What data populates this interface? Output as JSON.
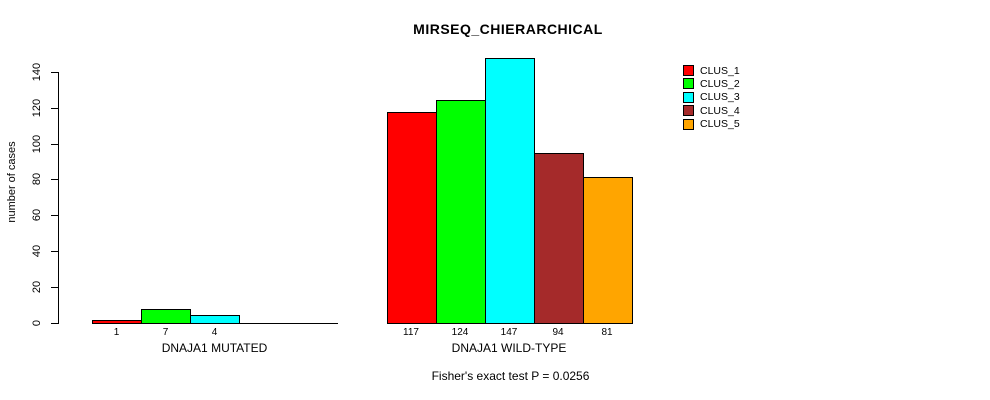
{
  "chart_data": {
    "type": "bar",
    "grouped": true,
    "title": "MIRSEQ_CHIERARCHICAL",
    "ylabel": "number of cases",
    "xlabel": "",
    "footnote": "Fisher's exact test P = 0.0256",
    "categories": [
      "DNAJA1 MUTATED",
      "DNAJA1 WILD-TYPE"
    ],
    "series": [
      {
        "name": "CLUS_1",
        "color": "#FF0000",
        "values": [
          1,
          117
        ]
      },
      {
        "name": "CLUS_2",
        "color": "#00FF00",
        "values": [
          7,
          124
        ]
      },
      {
        "name": "CLUS_3",
        "color": "#00FFFF",
        "values": [
          4,
          147
        ]
      },
      {
        "name": "CLUS_4",
        "color": "#A52A2A",
        "values": [
          0,
          94
        ]
      },
      {
        "name": "CLUS_5",
        "color": "#FFA500",
        "values": [
          0,
          81
        ]
      }
    ],
    "bar_value_labels": {
      "DNAJA1 MUTATED": [
        "1",
        "7",
        "4"
      ],
      "DNAJA1 WILD-TYPE": [
        "117",
        "124",
        "147",
        "94",
        "81"
      ]
    },
    "yticks": [
      0,
      20,
      40,
      60,
      80,
      100,
      120,
      140
    ],
    "ylim": [
      0,
      140
    ],
    "grid": false,
    "legend_position": "top-right",
    "axis_color": "#000000",
    "background_color": "#FFFFFF"
  }
}
